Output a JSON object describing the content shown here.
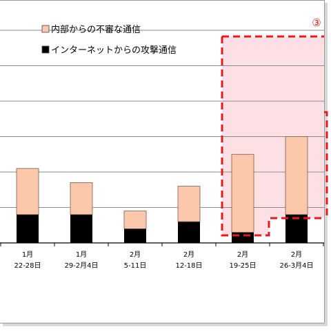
{
  "chart_data": {
    "type": "bar",
    "stacked": true,
    "categories": [
      {
        "month": "1月",
        "range": "22-28日"
      },
      {
        "month": "1月",
        "range": "29-2月4日"
      },
      {
        "month": "2月",
        "range": "5-11日"
      },
      {
        "month": "2月",
        "range": "12-18日"
      },
      {
        "month": "2月",
        "range": "19-25日"
      },
      {
        "month": "2月",
        "range": "26-3月4日"
      }
    ],
    "series": [
      {
        "name": "インターネットからの攻撃通信",
        "color": "#000000",
        "values": [
          0.8,
          0.8,
          0.4,
          0.6,
          0.3,
          0.8
        ]
      },
      {
        "name": "内部からの不審な通信",
        "color": "#fbc8ac",
        "values": [
          1.3,
          0.9,
          0.5,
          1.0,
          2.2,
          2.2
        ]
      }
    ],
    "ylim": [
      0,
      6
    ],
    "grid": true,
    "legend_position": "top-left",
    "annotation": {
      "label": "③",
      "color": "#e8181c",
      "fill": "#fde0e4"
    }
  }
}
